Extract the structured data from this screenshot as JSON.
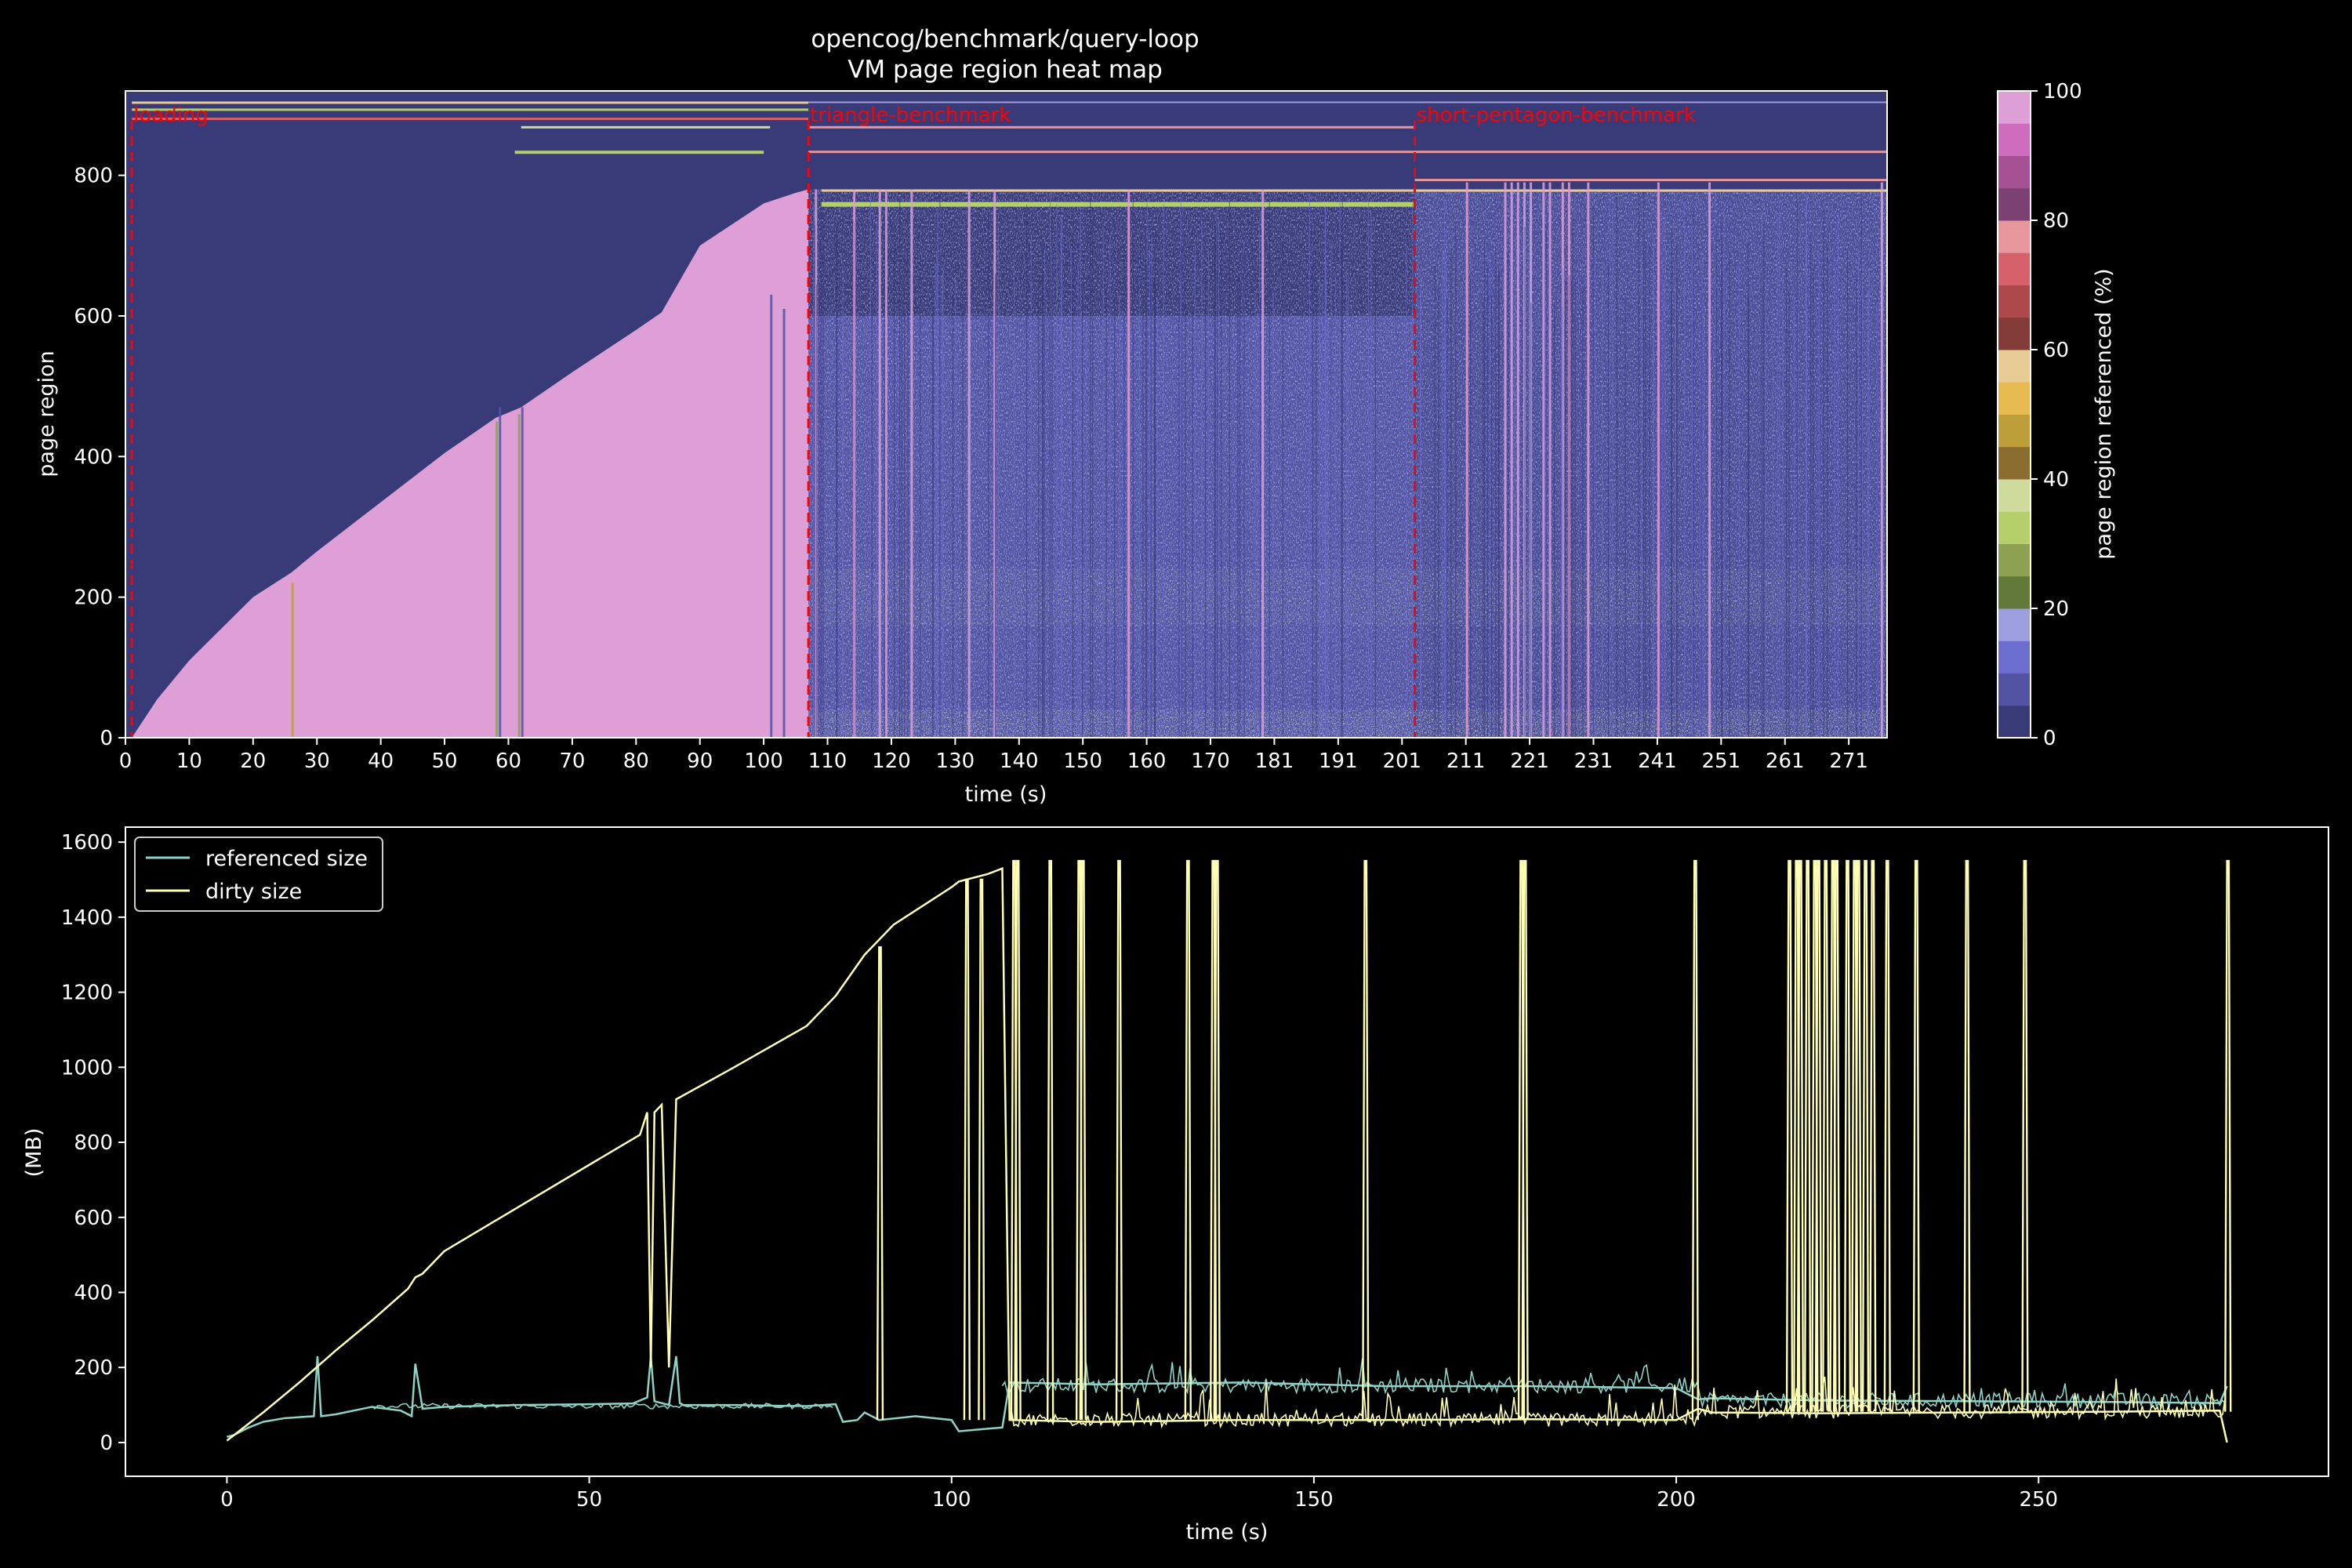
{
  "figure": {
    "title_line1": "opencog/benchmark/query-loop",
    "title_line2": "VM page region heat map"
  },
  "colors": {
    "background": "#000000",
    "heatmap_base": "#393b79",
    "heatmap_filled": "#de9ed6",
    "phase_marker": "#ff0000",
    "referenced_line": "#8dd3c7",
    "dirty_line": "#ffffb3"
  },
  "chart_data": [
    {
      "type": "heatmap",
      "title": "VM page region heat map",
      "xlabel": "time (s)",
      "ylabel": "page region",
      "x_tick_labels": [
        "0",
        "10",
        "20",
        "30",
        "40",
        "50",
        "60",
        "70",
        "80",
        "90",
        "100",
        "110",
        "120",
        "130",
        "140",
        "150",
        "160",
        "170",
        "181",
        "191",
        "201",
        "211",
        "221",
        "231",
        "241",
        "251",
        "261",
        "271"
      ],
      "y_ticks": [
        0,
        200,
        400,
        600,
        800
      ],
      "ylim": [
        0,
        920
      ],
      "xlim": [
        0,
        276
      ],
      "colorbar": {
        "label": "page region referenced (%)",
        "range": [
          0,
          100
        ],
        "ticks": [
          0,
          20,
          40,
          60,
          80,
          100
        ],
        "colormap": "tab20b",
        "levels": [
          "#393b79",
          "#5254a3",
          "#6b6ecf",
          "#9c9ede",
          "#637939",
          "#8ca252",
          "#b5cf6b",
          "#cedb9c",
          "#8c6d31",
          "#bd9e39",
          "#e7ba52",
          "#e7cb94",
          "#843c39",
          "#ad494a",
          "#d6616b",
          "#e7969c",
          "#7b4173",
          "#a55194",
          "#ce6dbd",
          "#de9ed6"
        ]
      },
      "phases": [
        {
          "label": "loading",
          "time": 1.0
        },
        {
          "label": "triangle-benchmark",
          "time": 107.0
        },
        {
          "label": "short-pentagon-benchmark",
          "time": 202.0
        }
      ],
      "filled_region_boundary": {
        "time": [
          1,
          5,
          10,
          20,
          26,
          30,
          40,
          50,
          58,
          62,
          70,
          80,
          84,
          90,
          100,
          105,
          107
        ],
        "page_region": [
          0,
          55,
          110,
          200,
          235,
          265,
          335,
          405,
          455,
          470,
          520,
          580,
          605,
          700,
          760,
          775,
          780
        ]
      }
    },
    {
      "type": "line",
      "xlabel": "time (s)",
      "ylabel": "(MB)",
      "xlim": [
        -14,
        290
      ],
      "ylim": [
        -90,
        1640
      ],
      "x_ticks": [
        0,
        50,
        100,
        150,
        200,
        250
      ],
      "y_ticks": [
        0,
        200,
        400,
        600,
        800,
        1000,
        1200,
        1400,
        1600
      ],
      "legend_position": "top-left",
      "series": [
        {
          "name": "referenced size",
          "x": [
            0,
            1,
            3,
            5,
            8,
            12,
            12.5,
            13,
            15,
            20,
            24,
            25.5,
            26,
            27,
            30,
            40,
            50,
            56,
            58,
            58.5,
            59,
            61,
            62,
            62.5,
            63,
            70,
            75,
            80,
            84,
            85,
            87,
            88,
            90,
            95,
            100,
            101,
            104,
            107,
            108,
            120,
            140,
            160,
            180,
            200,
            203,
            205,
            220,
            240,
            260,
            275,
            276
          ],
          "y": [
            15,
            20,
            40,
            55,
            65,
            70,
            230,
            70,
            75,
            95,
            85,
            70,
            210,
            90,
            95,
            100,
            102,
            104,
            120,
            230,
            110,
            100,
            230,
            105,
            100,
            100,
            98,
            97,
            102,
            55,
            60,
            80,
            60,
            70,
            60,
            30,
            35,
            40,
            160,
            155,
            160,
            150,
            150,
            145,
            115,
            118,
            112,
            110,
            108,
            105,
            150
          ]
        },
        {
          "name": "dirty size",
          "x": [
            0,
            5,
            10,
            15,
            20,
            25,
            26,
            27,
            30,
            40,
            50,
            57,
            58,
            58.5,
            59,
            60,
            61,
            62,
            62.5,
            70,
            80,
            84,
            88,
            90,
            92,
            100,
            101,
            105,
            107,
            108,
            120,
            140,
            160,
            180,
            200,
            203,
            205,
            220,
            240,
            260,
            275,
            276
          ],
          "y": [
            5,
            80,
            160,
            245,
            325,
            410,
            440,
            450,
            510,
            625,
            740,
            820,
            880,
            200,
            880,
            900,
            200,
            915,
            920,
            1000,
            1110,
            1190,
            1300,
            1340,
            1380,
            1480,
            1495,
            1515,
            1530,
            60,
            55,
            60,
            60,
            62,
            60,
            90,
            80,
            78,
            80,
            82,
            85,
            0
          ]
        }
      ]
    }
  ]
}
